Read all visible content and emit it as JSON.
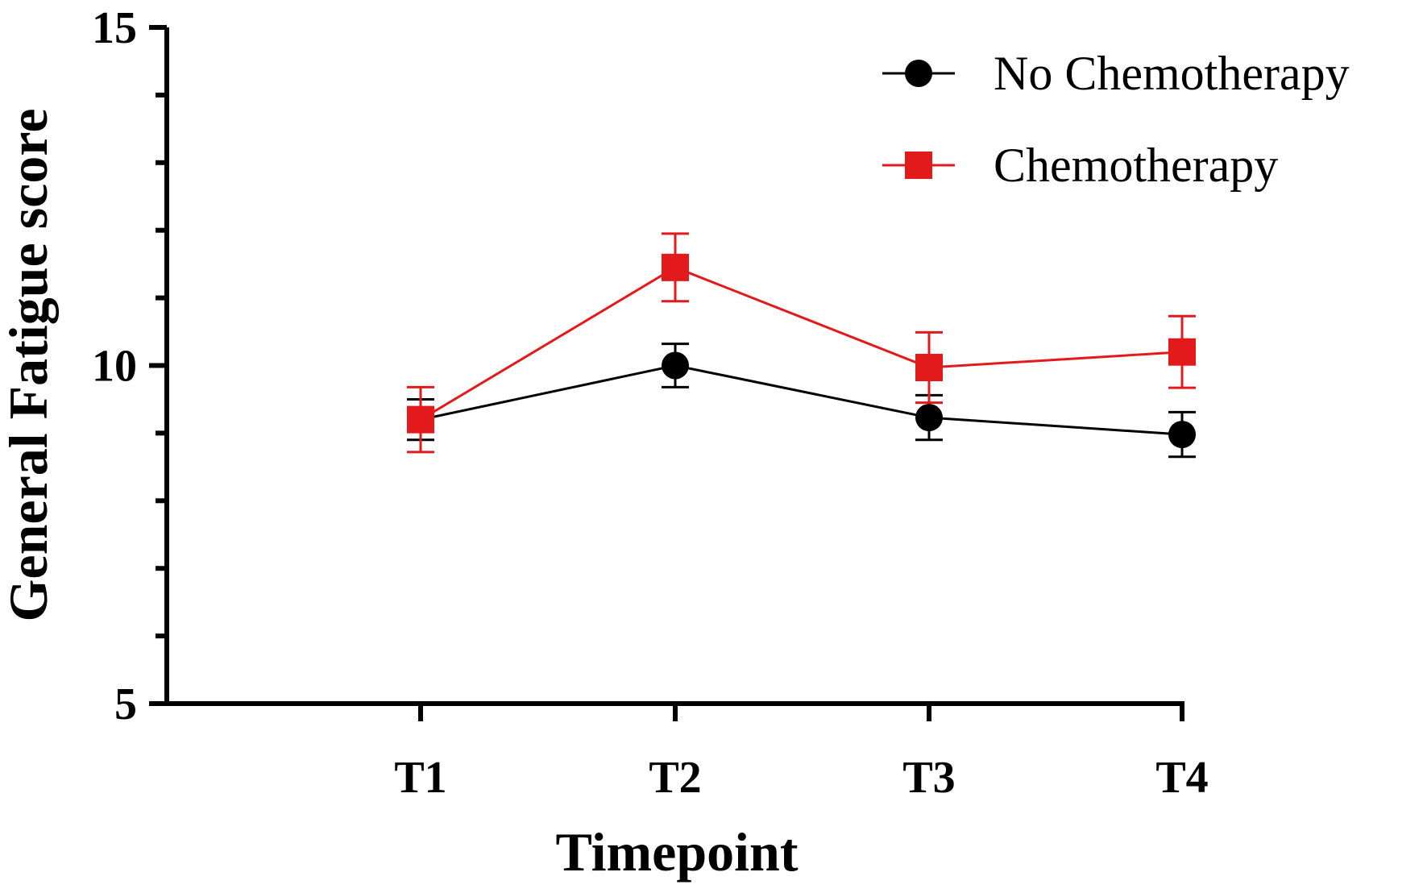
{
  "chart_data": {
    "type": "line",
    "xlabel": "Timepoint",
    "ylabel": "General Fatigue score",
    "categories": [
      "T1",
      "T2",
      "T3",
      "T4"
    ],
    "ylim": [
      5,
      15
    ],
    "yticks": [
      5,
      10,
      15
    ],
    "grid": false,
    "legend_position": "top-right",
    "series": [
      {
        "name": "No Chemotherapy",
        "color": "#000000",
        "marker": "circle",
        "values": [
          9.2,
          10.0,
          9.23,
          8.98
        ],
        "err_low": [
          0.3,
          0.32,
          0.33,
          0.33
        ],
        "err_high": [
          0.3,
          0.32,
          0.33,
          0.33
        ]
      },
      {
        "name": "Chemotherapy",
        "color": "#e31a1c",
        "marker": "square",
        "values": [
          9.2,
          11.45,
          9.97,
          10.2
        ],
        "err_low": [
          0.48,
          0.5,
          0.52,
          0.53
        ],
        "err_high": [
          0.48,
          0.5,
          0.52,
          0.53
        ]
      }
    ]
  }
}
